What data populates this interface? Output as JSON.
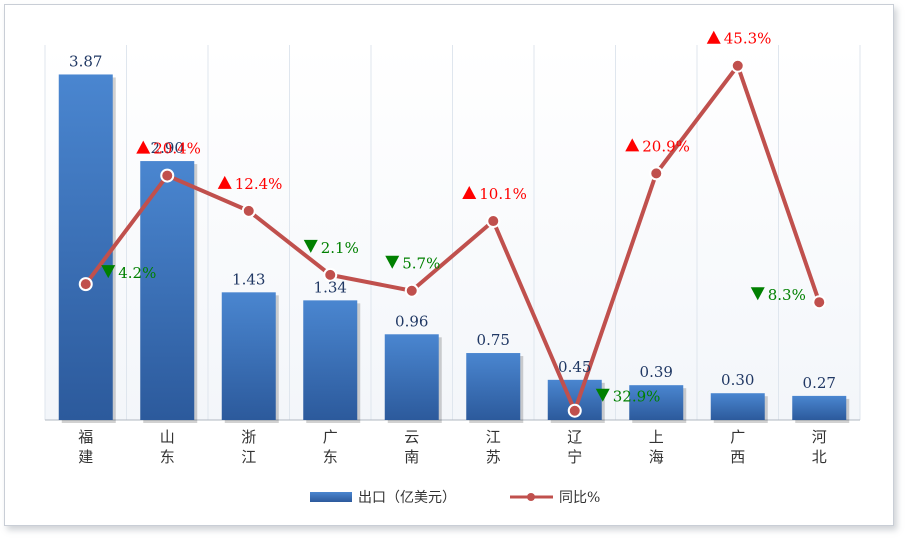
{
  "chart_data": {
    "type": "bar",
    "categories": [
      "福建",
      "山东",
      "浙江",
      "广东",
      "云南",
      "江苏",
      "辽宁",
      "上海",
      "广西",
      "河北"
    ],
    "series": [
      {
        "name": "出口（亿美元）",
        "type": "bar",
        "values": [
          3.87,
          2.9,
          1.43,
          1.34,
          0.96,
          0.75,
          0.45,
          0.39,
          0.3,
          0.27
        ],
        "color": "#3e72bd"
      },
      {
        "name": "同比%",
        "type": "line",
        "values": [
          -4.2,
          20.4,
          12.4,
          -2.1,
          -5.7,
          10.1,
          -32.9,
          20.9,
          45.3,
          -8.3
        ],
        "color": "#c0504d"
      }
    ],
    "bar_labels": [
      "3.87",
      "2.90",
      "1.43",
      "1.34",
      "0.96",
      "0.75",
      "0.45",
      "0.39",
      "0.30",
      "0.27"
    ],
    "line_labels": [
      "4.2%",
      "20.4%",
      "12.4%",
      "2.1%",
      "5.7%",
      "10.1%",
      "32.9%",
      "20.9%",
      "45.3%",
      "8.3%"
    ],
    "line_directions": [
      "down",
      "up",
      "up",
      "down",
      "down",
      "up",
      "down",
      "up",
      "up",
      "down"
    ],
    "up_color": "#ff0000",
    "down_color": "#008000",
    "ylim_bar": [
      0,
      4.2
    ],
    "ylim_line": [
      -35,
      50
    ],
    "grid": "vertical",
    "legend_position": "bottom"
  }
}
